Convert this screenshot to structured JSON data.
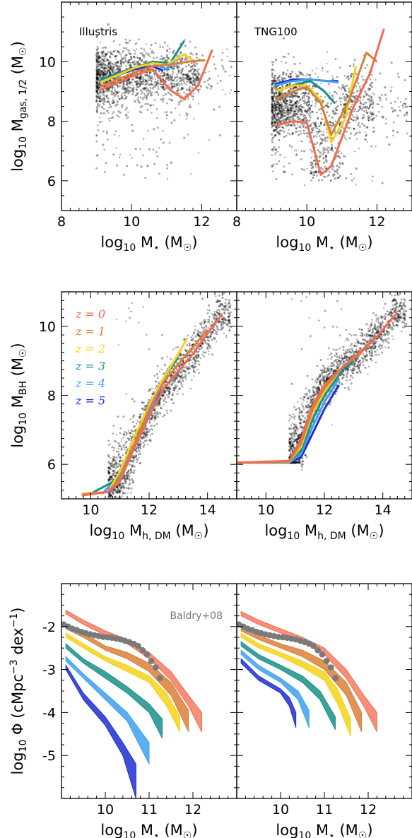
{
  "colors": {
    "z0": "#f26b4f",
    "z1": "#d9803a",
    "z2": "#f5d21a",
    "z3": "#1a8f8a",
    "z4": "#3ea1ef",
    "z5": "#1f2fd0",
    "scatter": "#000000",
    "observations": "#7a7a7a"
  },
  "chart_data": [
    {
      "id": "gas-illustris",
      "type": "line",
      "panel_label": "Illustris",
      "xlabel": "log₁₀ M⋆ (M☉)",
      "ylabel": "log₁₀ M_gas,1/2 (M☉)",
      "xlim": [
        8,
        13
      ],
      "ylim": [
        5,
        12
      ],
      "xticks": [
        8,
        10,
        12
      ],
      "yticks": [
        6,
        8,
        10
      ],
      "scatter_cloud": {
        "x_range": [
          9.0,
          12.9
        ],
        "y_core": [
          8.7,
          10.3
        ],
        "y_tail_min": 6.0
      },
      "series": [
        {
          "color_key": "z5",
          "x": [
            9.1,
            9.6,
            10.1,
            10.6,
            10.9
          ],
          "y": [
            9.3,
            9.55,
            9.75,
            9.85,
            9.7
          ]
        },
        {
          "color_key": "z4",
          "x": [
            9.1,
            9.6,
            10.1,
            10.6,
            11.0,
            11.3
          ],
          "y": [
            9.35,
            9.6,
            9.8,
            9.95,
            9.75,
            10.1
          ]
        },
        {
          "color_key": "z3",
          "x": [
            9.1,
            9.6,
            10.1,
            10.6,
            11.1,
            11.5
          ],
          "y": [
            9.4,
            9.6,
            9.8,
            10.0,
            9.95,
            10.7
          ]
        },
        {
          "color_key": "z2",
          "x": [
            9.1,
            9.6,
            10.1,
            10.6,
            11.0,
            11.5,
            11.8
          ],
          "y": [
            9.3,
            9.55,
            9.8,
            9.95,
            9.9,
            10.25,
            10.0
          ]
        },
        {
          "color_key": "z1",
          "x": [
            9.1,
            9.6,
            10.1,
            10.6,
            11.1,
            11.6,
            12.1
          ],
          "y": [
            9.15,
            9.4,
            9.65,
            9.85,
            9.9,
            10.0,
            10.05
          ]
        },
        {
          "color_key": "z0",
          "x": [
            9.1,
            9.6,
            10.1,
            10.6,
            11.1,
            11.5,
            11.9,
            12.3
          ],
          "y": [
            9.05,
            9.3,
            9.55,
            9.75,
            9.05,
            8.75,
            9.2,
            10.4
          ]
        }
      ]
    },
    {
      "id": "gas-tng",
      "type": "line",
      "panel_label": "TNG100",
      "xlabel": "log₁₀ M⋆ (M☉)",
      "ylabel": "",
      "xlim": [
        8,
        13
      ],
      "ylim": [
        5,
        12
      ],
      "xticks": [
        8,
        10,
        12
      ],
      "yticks": [
        6,
        8,
        10
      ],
      "scatter_cloud": {
        "x_range": [
          9.0,
          12.9
        ],
        "y_core": [
          7.6,
          9.6
        ],
        "y_tail_min": 5.8
      },
      "series": [
        {
          "color_key": "z5",
          "x": [
            9.1,
            9.6,
            10.1,
            10.6,
            10.9
          ],
          "y": [
            9.25,
            9.4,
            9.4,
            9.35,
            9.35
          ]
        },
        {
          "color_key": "z4",
          "x": [
            9.1,
            9.6,
            10.1,
            10.6,
            10.9
          ],
          "y": [
            9.2,
            9.35,
            9.4,
            9.35,
            9.3
          ]
        },
        {
          "color_key": "z3",
          "x": [
            9.1,
            9.6,
            10.1,
            10.5,
            10.8
          ],
          "y": [
            9.0,
            9.2,
            9.35,
            9.0,
            8.6
          ]
        },
        {
          "color_key": "z2",
          "x": [
            9.1,
            9.6,
            10.0,
            10.4,
            10.7,
            11.1,
            11.4
          ],
          "y": [
            9.0,
            9.2,
            9.2,
            8.7,
            7.3,
            8.1,
            9.85
          ]
        },
        {
          "color_key": "z1",
          "x": [
            9.1,
            9.6,
            10.0,
            10.4,
            10.7,
            11.2,
            11.7,
            12.0
          ],
          "y": [
            8.75,
            9.0,
            9.15,
            8.6,
            7.55,
            8.7,
            10.3,
            10.0
          ]
        },
        {
          "color_key": "z0",
          "x": [
            9.1,
            9.6,
            10.0,
            10.4,
            10.7,
            11.3,
            11.8,
            12.2
          ],
          "y": [
            7.85,
            8.0,
            7.95,
            6.2,
            6.5,
            8.4,
            9.6,
            11.1
          ]
        }
      ]
    },
    {
      "id": "bh-illustris",
      "type": "line",
      "panel_label": "",
      "xlabel": "log₁₀ M_h,DM (M☉)",
      "ylabel": "log₁₀ M_BH (M☉)",
      "xlim": [
        9,
        15
      ],
      "ylim": [
        5,
        11
      ],
      "xticks": [
        10,
        12,
        14
      ],
      "yticks": [
        6,
        8,
        10
      ],
      "legend": [
        "z = 0",
        "z = 1",
        "z = 2",
        "z = 3",
        "z = 4",
        "z = 5"
      ],
      "legend_position": "top-left",
      "scatter_cloud": {
        "x_range": [
          10.6,
          14.8
        ],
        "band_width": 0.45
      },
      "series": [
        {
          "color_key": "z5",
          "x": [
            10.6,
            11.0,
            11.5,
            12.0,
            12.4
          ],
          "y": [
            5.15,
            5.6,
            6.5,
            7.4,
            8.2
          ]
        },
        {
          "color_key": "z4",
          "x": [
            10.4,
            11.0,
            11.5,
            12.0,
            12.6
          ],
          "y": [
            5.15,
            5.7,
            6.6,
            7.5,
            8.6
          ]
        },
        {
          "color_key": "z3",
          "x": [
            10.0,
            11.0,
            11.5,
            12.0,
            12.5,
            13.0
          ],
          "y": [
            5.15,
            5.6,
            6.6,
            7.6,
            8.5,
            9.1
          ]
        },
        {
          "color_key": "z2",
          "x": [
            9.7,
            10.6,
            11.0,
            11.5,
            12.0,
            12.5,
            13.0,
            13.3
          ],
          "y": [
            5.15,
            5.2,
            5.8,
            6.8,
            7.7,
            8.5,
            9.2,
            9.65
          ]
        },
        {
          "color_key": "z1",
          "x": [
            9.7,
            10.6,
            11.0,
            11.5,
            12.0,
            12.5,
            13.0,
            13.5,
            14.0
          ],
          "y": [
            5.12,
            5.2,
            5.6,
            6.6,
            7.6,
            8.4,
            8.9,
            9.4,
            9.9
          ]
        },
        {
          "color_key": "z0",
          "x": [
            9.7,
            10.6,
            11.0,
            11.5,
            12.0,
            12.5,
            13.0,
            13.5,
            14.0,
            14.5
          ],
          "y": [
            5.1,
            5.2,
            5.5,
            6.5,
            7.4,
            8.2,
            8.7,
            9.2,
            9.8,
            10.35
          ]
        }
      ]
    },
    {
      "id": "bh-tng",
      "type": "line",
      "panel_label": "",
      "xlabel": "log₁₀ M_h,DM (M☉)",
      "ylabel": "",
      "xlim": [
        9,
        15
      ],
      "ylim": [
        5,
        11
      ],
      "xticks": [
        10,
        12,
        14
      ],
      "yticks": [
        6,
        8,
        10
      ],
      "scatter_cloud": {
        "x_range": [
          10.8,
          14.8
        ],
        "band_width": 0.4,
        "floor": 6.05
      },
      "series": [
        {
          "color_key": "z5",
          "x": [
            9.0,
            10.8,
            11.2,
            11.6,
            12.0,
            12.5
          ],
          "y": [
            6.05,
            6.05,
            6.2,
            6.9,
            7.6,
            8.3
          ]
        },
        {
          "color_key": "z4",
          "x": [
            9.0,
            10.8,
            11.2,
            11.6,
            12.0,
            12.5
          ],
          "y": [
            6.05,
            6.05,
            6.3,
            7.1,
            7.8,
            8.5
          ]
        },
        {
          "color_key": "z3",
          "x": [
            9.0,
            10.8,
            11.2,
            11.6,
            12.0,
            12.6,
            13.0
          ],
          "y": [
            6.05,
            6.06,
            6.4,
            7.3,
            8.0,
            8.7,
            9.0
          ]
        },
        {
          "color_key": "z2",
          "x": [
            9.0,
            10.8,
            11.2,
            11.6,
            12.0,
            12.6,
            13.2
          ],
          "y": [
            6.05,
            6.07,
            6.5,
            7.5,
            8.1,
            8.8,
            9.2
          ]
        },
        {
          "color_key": "z1",
          "x": [
            9.0,
            10.8,
            11.2,
            11.6,
            12.0,
            12.6,
            13.2,
            13.8
          ],
          "y": [
            6.05,
            6.08,
            6.6,
            7.6,
            8.2,
            8.8,
            9.25,
            9.7
          ]
        },
        {
          "color_key": "z0",
          "x": [
            9.0,
            10.8,
            11.2,
            11.6,
            12.0,
            12.6,
            13.2,
            13.8,
            14.5
          ],
          "y": [
            6.05,
            6.1,
            6.7,
            7.7,
            8.3,
            8.8,
            9.2,
            9.7,
            10.4
          ]
        }
      ]
    },
    {
      "id": "smf-illustris",
      "type": "area",
      "panel_label": "",
      "xlabel": "log₁₀ M⋆ (M☉)",
      "ylabel": "log₁₀ Φ (cMpc⁻³ dex⁻¹)",
      "xlim": [
        9.0,
        13.0
      ],
      "ylim": [
        -6.0,
        -1.0
      ],
      "xticks": [
        10,
        11,
        12
      ],
      "yticks": [
        -2,
        -3,
        -4,
        -5
      ],
      "xticklabels": [
        "10",
        "11",
        "12"
      ],
      "yticklabels": [
        "-2",
        "-3",
        "-4",
        "-5"
      ],
      "observations": {
        "label": "Baldry+08",
        "x": [
          9.05,
          9.15,
          9.25,
          9.35,
          9.45,
          9.55,
          9.65,
          9.75,
          9.85,
          9.95,
          10.05,
          10.15,
          10.25,
          10.35,
          10.45,
          10.55,
          10.65,
          10.75,
          10.85,
          10.95,
          11.05,
          11.15,
          11.25
        ],
        "y": [
          -1.95,
          -2.0,
          -2.05,
          -2.08,
          -2.12,
          -2.15,
          -2.18,
          -2.2,
          -2.22,
          -2.24,
          -2.25,
          -2.26,
          -2.28,
          -2.3,
          -2.33,
          -2.36,
          -2.4,
          -2.45,
          -2.55,
          -2.65,
          -2.8,
          -2.95,
          -3.2
        ]
      },
      "series": [
        {
          "color_key": "z5",
          "x": [
            9.1,
            9.5,
            10.0,
            10.4,
            10.7
          ],
          "lo": [
            -3.0,
            -3.7,
            -4.3,
            -5.0,
            -6.0
          ],
          "hi": [
            -2.9,
            -3.55,
            -4.1,
            -4.7,
            -5.2
          ]
        },
        {
          "color_key": "z4",
          "x": [
            9.1,
            9.5,
            10.0,
            10.5,
            11.0
          ],
          "lo": [
            -2.8,
            -3.2,
            -3.7,
            -4.2,
            -5.2
          ],
          "hi": [
            -2.7,
            -3.1,
            -3.55,
            -4.0,
            -4.7
          ]
        },
        {
          "color_key": "z3",
          "x": [
            9.1,
            9.5,
            10.0,
            10.5,
            11.0,
            11.3
          ],
          "lo": [
            -2.5,
            -2.85,
            -3.2,
            -3.55,
            -4.0,
            -4.6
          ],
          "hi": [
            -2.4,
            -2.75,
            -3.05,
            -3.4,
            -3.8,
            -4.15
          ]
        },
        {
          "color_key": "z2",
          "x": [
            9.1,
            9.5,
            10.0,
            10.5,
            11.0,
            11.4,
            11.7
          ],
          "lo": [
            -2.25,
            -2.5,
            -2.8,
            -3.05,
            -3.3,
            -3.85,
            -4.45
          ],
          "hi": [
            -2.15,
            -2.4,
            -2.7,
            -2.9,
            -3.15,
            -3.55,
            -4.1
          ]
        },
        {
          "color_key": "z1",
          "x": [
            9.1,
            9.5,
            10.0,
            10.5,
            11.0,
            11.5,
            11.9
          ],
          "lo": [
            -2.05,
            -2.25,
            -2.55,
            -2.75,
            -3.05,
            -3.6,
            -4.45
          ],
          "hi": [
            -1.97,
            -2.15,
            -2.45,
            -2.6,
            -2.85,
            -3.3,
            -3.95
          ]
        },
        {
          "color_key": "z0",
          "x": [
            9.1,
            9.5,
            10.0,
            10.5,
            11.0,
            11.5,
            11.9,
            12.2
          ],
          "lo": [
            -1.7,
            -1.95,
            -2.2,
            -2.4,
            -2.75,
            -3.25,
            -3.85,
            -4.45
          ],
          "hi": [
            -1.62,
            -1.85,
            -2.1,
            -2.3,
            -2.6,
            -3.05,
            -3.6,
            -4.0
          ]
        }
      ]
    },
    {
      "id": "smf-tng",
      "type": "area",
      "panel_label": "",
      "xlabel": "log₁₀ M⋆ (M☉)",
      "ylabel": "",
      "xlim": [
        9.0,
        13.0
      ],
      "ylim": [
        -6.0,
        -1.0
      ],
      "xticks": [
        10,
        11,
        12
      ],
      "yticks": [
        -2,
        -3,
        -4,
        -5
      ],
      "xticklabels": [
        "10",
        "11",
        "12"
      ],
      "observations": {
        "label": "",
        "x": [
          9.05,
          9.15,
          9.25,
          9.35,
          9.45,
          9.55,
          9.65,
          9.75,
          9.85,
          9.95,
          10.05,
          10.15,
          10.25,
          10.35,
          10.45,
          10.55,
          10.65,
          10.75,
          10.85,
          10.95,
          11.05,
          11.15,
          11.25
        ],
        "y": [
          -1.95,
          -2.0,
          -2.05,
          -2.08,
          -2.12,
          -2.15,
          -2.18,
          -2.2,
          -2.22,
          -2.24,
          -2.25,
          -2.26,
          -2.28,
          -2.3,
          -2.33,
          -2.36,
          -2.4,
          -2.45,
          -2.55,
          -2.65,
          -2.8,
          -2.95,
          -3.2
        ]
      },
      "series": [
        {
          "color_key": "z5",
          "x": [
            9.1,
            9.5,
            10.0,
            10.2,
            10.35
          ],
          "lo": [
            -2.85,
            -3.25,
            -3.55,
            -3.85,
            -4.35
          ],
          "hi": [
            -2.75,
            -3.15,
            -3.45,
            -3.65,
            -4.0
          ]
        },
        {
          "color_key": "z4",
          "x": [
            9.1,
            9.5,
            10.0,
            10.4,
            10.65
          ],
          "lo": [
            -2.65,
            -3.0,
            -3.3,
            -3.7,
            -4.35
          ],
          "hi": [
            -2.55,
            -2.9,
            -3.2,
            -3.5,
            -3.95
          ]
        },
        {
          "color_key": "z3",
          "x": [
            9.1,
            9.5,
            10.0,
            10.5,
            10.9,
            11.25
          ],
          "lo": [
            -2.45,
            -2.75,
            -3.0,
            -3.3,
            -3.7,
            -4.4
          ],
          "hi": [
            -2.35,
            -2.65,
            -2.9,
            -3.15,
            -3.5,
            -4.1
          ]
        },
        {
          "color_key": "z2",
          "x": [
            9.1,
            9.5,
            10.0,
            10.5,
            11.0,
            11.3,
            11.6
          ],
          "lo": [
            -2.25,
            -2.5,
            -2.7,
            -2.95,
            -3.25,
            -3.8,
            -4.55
          ],
          "hi": [
            -2.15,
            -2.4,
            -2.6,
            -2.8,
            -3.05,
            -3.45,
            -4.15
          ]
        },
        {
          "color_key": "z1",
          "x": [
            9.1,
            9.5,
            10.0,
            10.5,
            11.0,
            11.5,
            11.85
          ],
          "lo": [
            -2.1,
            -2.3,
            -2.5,
            -2.7,
            -3.0,
            -3.6,
            -4.45
          ],
          "hi": [
            -2.0,
            -2.2,
            -2.4,
            -2.55,
            -2.8,
            -3.3,
            -4.0
          ]
        },
        {
          "color_key": "z0",
          "x": [
            9.1,
            9.5,
            10.0,
            10.5,
            11.0,
            11.5,
            11.9,
            12.2
          ],
          "lo": [
            -1.75,
            -1.95,
            -2.15,
            -2.35,
            -2.65,
            -3.2,
            -3.85,
            -4.45
          ],
          "hi": [
            -1.65,
            -1.85,
            -2.05,
            -2.25,
            -2.5,
            -3.0,
            -3.6,
            -4.0
          ]
        }
      ]
    }
  ]
}
